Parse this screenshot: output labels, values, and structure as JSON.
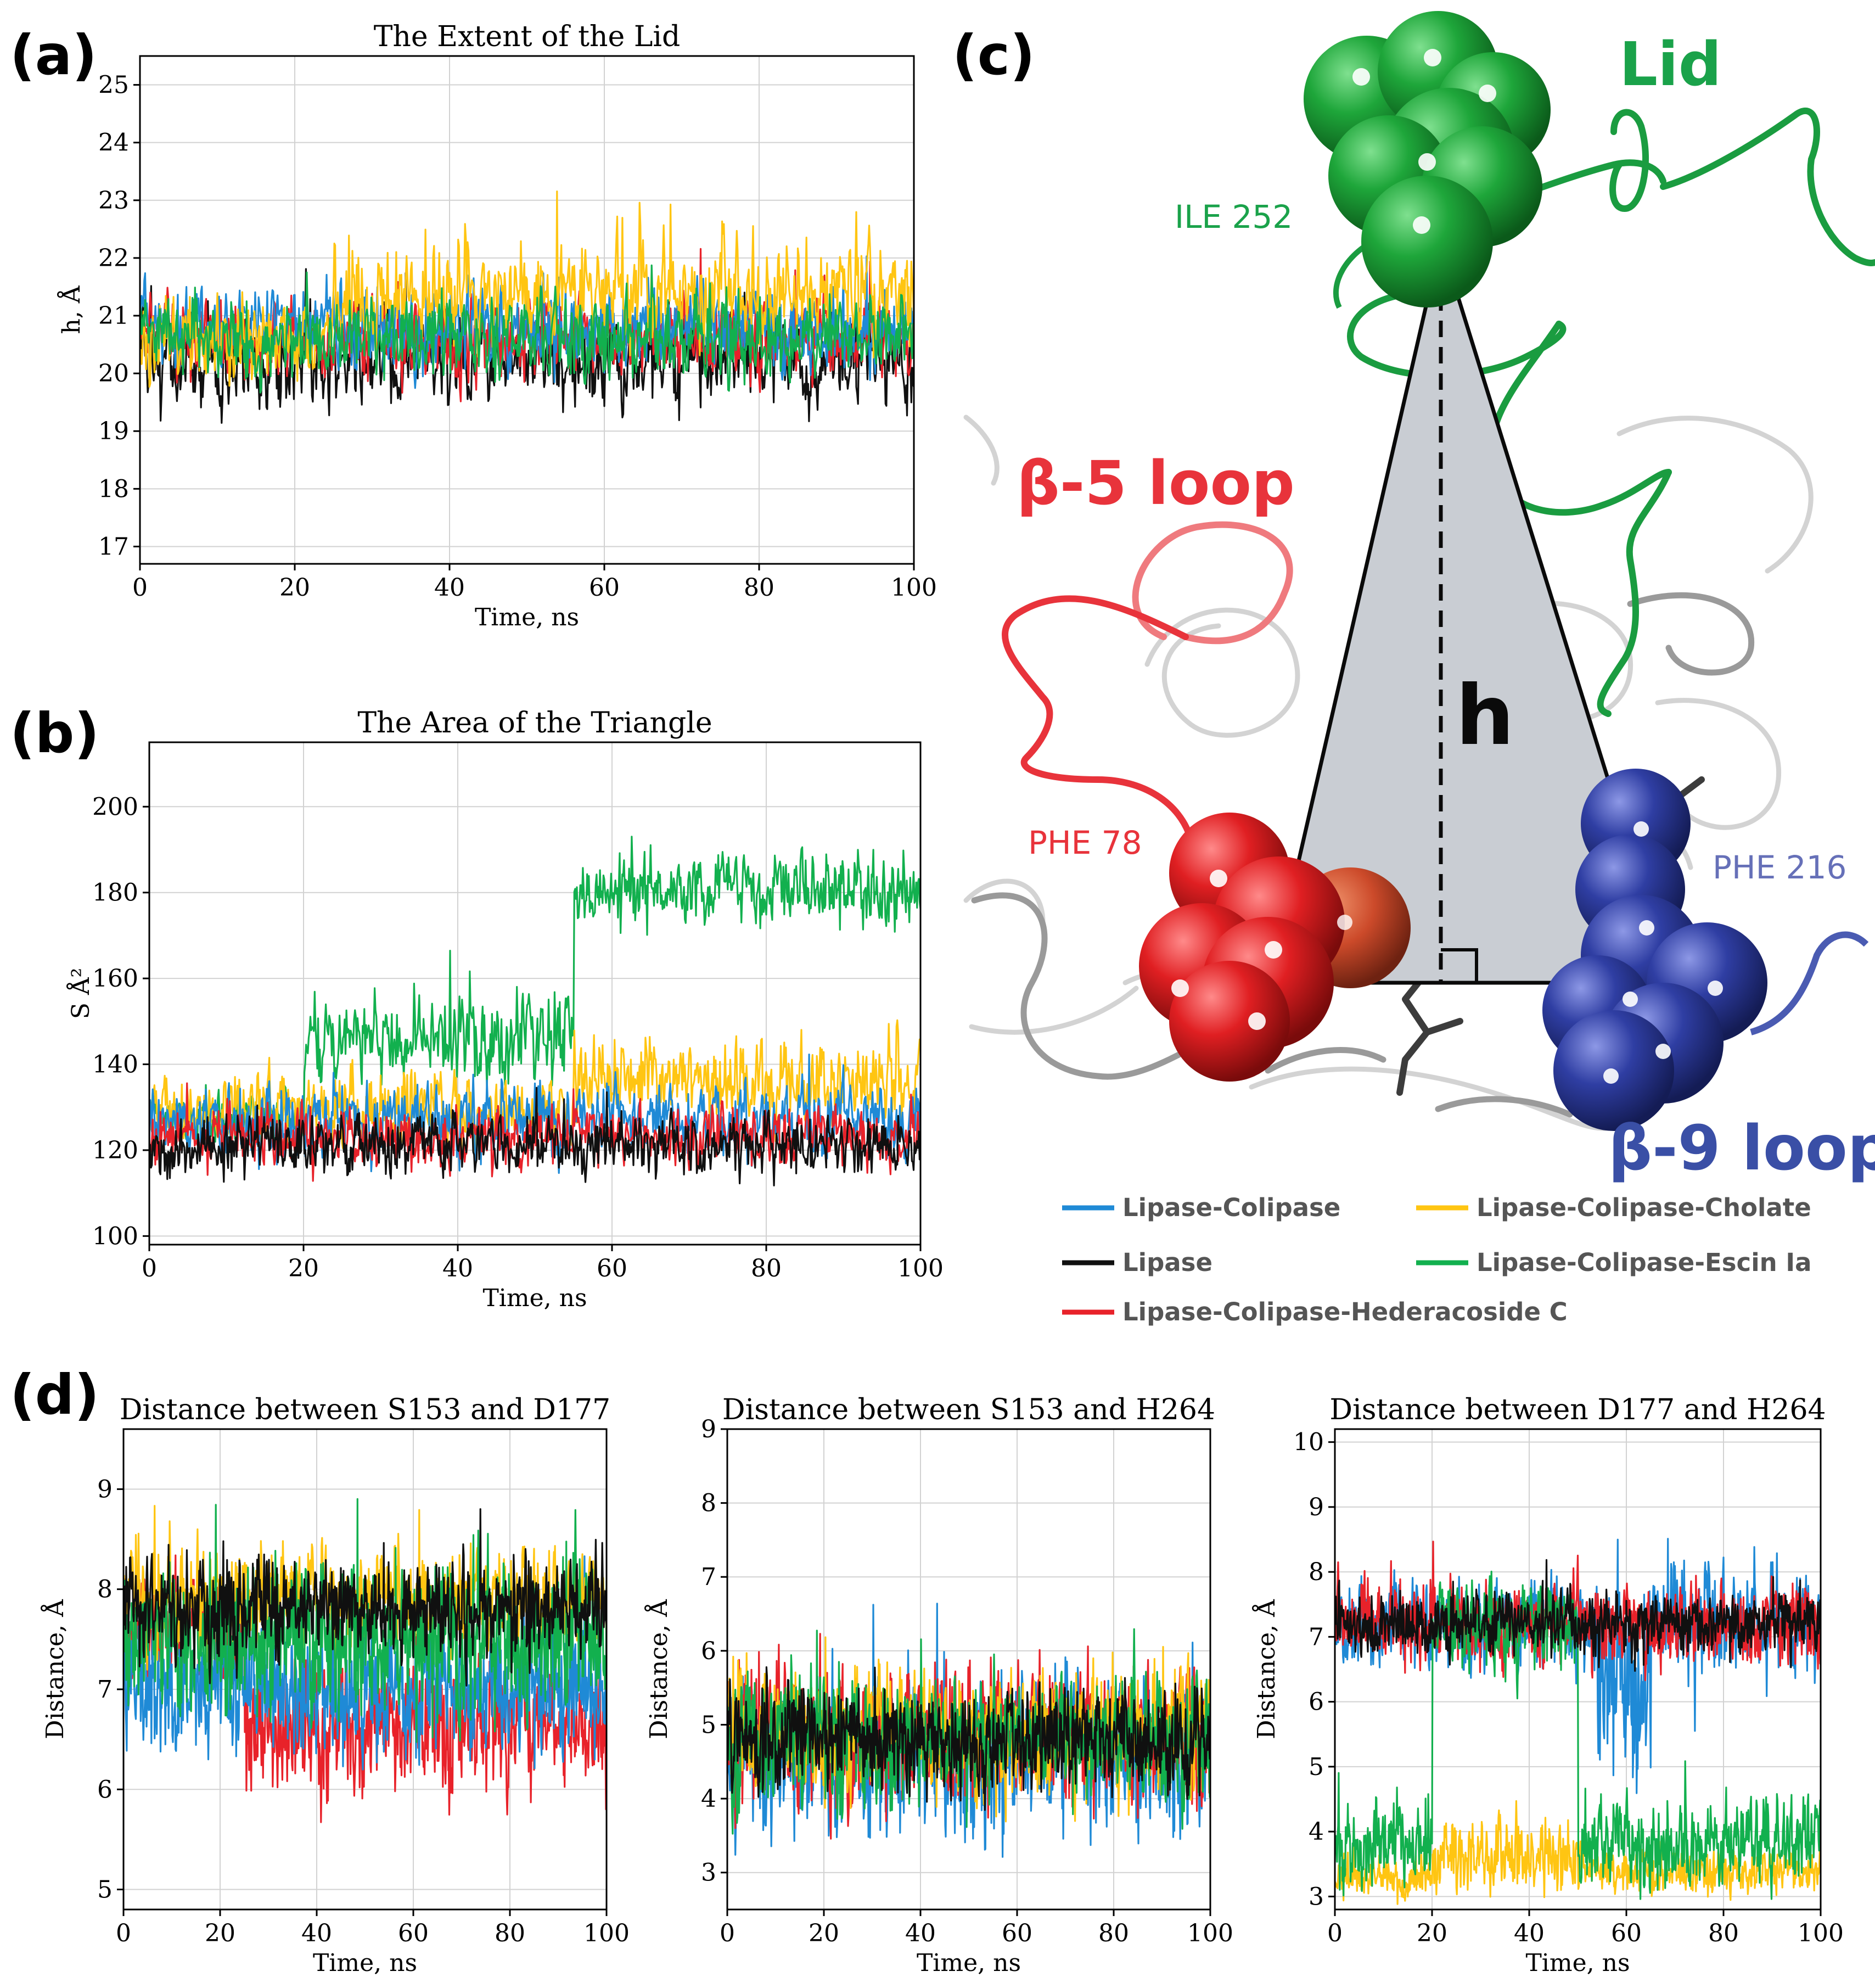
{
  "panel_labels": {
    "a": "(a)",
    "b": "(b)",
    "c": "(c)",
    "d": "(d)"
  },
  "colors": {
    "Lipase-Colipase": "#1f8ad6",
    "Lipase-Colipase-Cholate": "#ffc512",
    "Lipase": "#101010",
    "Lipase-Colipase-Escin Ia": "#12b04e",
    "Lipase-Colipase-Hederacoside C": "#e8222a"
  },
  "legend": [
    {
      "name": "Lipase-Colipase",
      "color": "#1f8ad6"
    },
    {
      "name": "Lipase-Colipase-Cholate",
      "color": "#ffc512"
    },
    {
      "name": "Lipase",
      "color": "#101010"
    },
    {
      "name": "Lipase-Colipase-Escin Ia",
      "color": "#12b04e"
    },
    {
      "name": "Lipase-Colipase-Hederacoside C",
      "color": "#e8222a"
    }
  ],
  "structure": {
    "labels": {
      "lid": "Lid",
      "ile": "ILE  252",
      "beta5": "β-5 loop",
      "beta9": "β-9 loop",
      "phe78": "PHE  78",
      "phe216": "PHE  216",
      "h": "h"
    },
    "colors": {
      "lid": "#1aa24a",
      "beta5": "#e8333b",
      "beta9": "#3a4fa6",
      "phe216": "#6670b8",
      "triangle": "#c9cdd3"
    }
  },
  "chart_data": [
    {
      "id": "a",
      "type": "line",
      "title": "The Extent of the Lid",
      "xlabel": "Time, ns",
      "ylabel": "h, Å",
      "xlim": [
        0,
        100
      ],
      "ylim": [
        16.7,
        25.5
      ],
      "xticks": [
        0,
        20,
        40,
        60,
        80,
        100
      ],
      "yticks": [
        17,
        18,
        19,
        20,
        21,
        22,
        23,
        24,
        25
      ],
      "grid": true,
      "series": [
        {
          "name": "Lipase",
          "color": "#101010",
          "segments": [
            [
              0,
              100,
              20.2,
              0.55
            ]
          ]
        },
        {
          "name": "Lipase-Colipase-Hederacoside C",
          "color": "#e8222a",
          "segments": [
            [
              0,
              100,
              20.6,
              0.5
            ]
          ]
        },
        {
          "name": "Lipase-Colipase",
          "color": "#1f8ad6",
          "segments": [
            [
              0,
              100,
              20.8,
              0.5
            ]
          ]
        },
        {
          "name": "Lipase-Colipase-Cholate",
          "color": "#ffc512",
          "segments": [
            [
              0,
              25,
              20.6,
              0.5
            ],
            [
              25,
              100,
              21.4,
              0.65
            ]
          ]
        },
        {
          "name": "Lipase-Colipase-Escin Ia",
          "color": "#12b04e",
          "segments": [
            [
              0,
              100,
              20.6,
              0.5
            ]
          ]
        }
      ]
    },
    {
      "id": "b",
      "type": "line",
      "title": "The Area of the Triangle",
      "xlabel": "Time, ns",
      "ylabel": "S Å²",
      "xlim": [
        0,
        100
      ],
      "ylim": [
        98,
        215
      ],
      "xticks": [
        0,
        20,
        40,
        60,
        80,
        100
      ],
      "yticks": [
        100,
        120,
        140,
        160,
        180,
        200
      ],
      "grid": true,
      "series": [
        {
          "name": "Lipase-Colipase-Escin Ia",
          "color": "#12b04e",
          "segments": [
            [
              0,
              20,
              128,
              4.5
            ],
            [
              20,
              38,
              146,
              6
            ],
            [
              38,
              55,
              148,
              8
            ],
            [
              55,
              100,
              180,
              6
            ]
          ]
        },
        {
          "name": "Lipase-Colipase-Cholate",
          "color": "#ffc512",
          "segments": [
            [
              0,
              55,
              130,
              6
            ],
            [
              55,
              100,
              137,
              7
            ]
          ]
        },
        {
          "name": "Lipase-Colipase",
          "color": "#1f8ad6",
          "segments": [
            [
              0,
              100,
              127,
              6
            ]
          ]
        },
        {
          "name": "Lipase-Colipase-Hederacoside C",
          "color": "#e8222a",
          "segments": [
            [
              0,
              100,
              123,
              5
            ]
          ]
        },
        {
          "name": "Lipase",
          "color": "#101010",
          "segments": [
            [
              0,
              100,
              121,
              5
            ]
          ]
        }
      ]
    },
    {
      "id": "d1",
      "type": "line",
      "title": "Distance between S153 and D177",
      "xlabel": "Time, ns",
      "ylabel": "Distance, Å",
      "xlim": [
        0,
        100
      ],
      "ylim": [
        4.8,
        9.6
      ],
      "xticks": [
        0,
        20,
        40,
        60,
        80,
        100
      ],
      "yticks": [
        5,
        6,
        7,
        8,
        9
      ],
      "grid": true,
      "series": [
        {
          "name": "Lipase-Colipase-Hederacoside C",
          "color": "#e8222a",
          "segments": [
            [
              0,
              25,
              7.6,
              0.35
            ],
            [
              25,
              100,
              6.6,
              0.45
            ]
          ]
        },
        {
          "name": "Lipase-Colipase",
          "color": "#1f8ad6",
          "segments": [
            [
              0,
              100,
              7.0,
              0.45
            ]
          ]
        },
        {
          "name": "Lipase-Colipase-Cholate",
          "color": "#ffc512",
          "segments": [
            [
              0,
              100,
              7.9,
              0.35
            ]
          ]
        },
        {
          "name": "Lipase-Colipase-Escin Ia",
          "color": "#12b04e",
          "segments": [
            [
              0,
              100,
              7.5,
              0.55
            ]
          ]
        },
        {
          "name": "Lipase",
          "color": "#101010",
          "segments": [
            [
              0,
              100,
              7.8,
              0.35
            ]
          ]
        }
      ]
    },
    {
      "id": "d2",
      "type": "line",
      "title": "Distance between S153 and H264",
      "xlabel": "Time, ns",
      "ylabel": "Distance, Å",
      "xlim": [
        0,
        100
      ],
      "ylim": [
        2.5,
        9
      ],
      "xticks": [
        0,
        20,
        40,
        60,
        80,
        100
      ],
      "yticks": [
        3,
        4,
        5,
        6,
        7,
        8,
        9
      ],
      "grid": true,
      "series": [
        {
          "name": "Lipase-Colipase",
          "color": "#1f8ad6",
          "segments": [
            [
              0,
              100,
              4.6,
              0.75
            ]
          ]
        },
        {
          "name": "Lipase-Colipase-Hederacoside C",
          "color": "#e8222a",
          "segments": [
            [
              0,
              100,
              4.9,
              0.65
            ]
          ]
        },
        {
          "name": "Lipase-Colipase-Cholate",
          "color": "#ffc512",
          "segments": [
            [
              0,
              100,
              4.9,
              0.6
            ]
          ]
        },
        {
          "name": "Lipase-Colipase-Escin Ia",
          "color": "#12b04e",
          "segments": [
            [
              0,
              100,
              4.8,
              0.6
            ]
          ]
        },
        {
          "name": "Lipase",
          "color": "#101010",
          "segments": [
            [
              0,
              100,
              4.8,
              0.5
            ]
          ]
        }
      ]
    },
    {
      "id": "d3",
      "type": "line",
      "title": "Distance between D177 and H264",
      "xlabel": "Time, ns",
      "ylabel": "Distance, Å",
      "xlim": [
        0,
        100
      ],
      "ylim": [
        2.8,
        10.2
      ],
      "xticks": [
        0,
        20,
        40,
        60,
        80,
        100
      ],
      "yticks": [
        3,
        4,
        5,
        6,
        7,
        8,
        9,
        10
      ],
      "grid": true,
      "series": [
        {
          "name": "Lipase-Colipase",
          "color": "#1f8ad6",
          "segments": [
            [
              0,
              54,
              7.2,
              0.5
            ],
            [
              54,
              65,
              6.2,
              1.3
            ],
            [
              65,
              100,
              7.2,
              0.55
            ]
          ]
        },
        {
          "name": "Lipase-Colipase-Hederacoside C",
          "color": "#e8222a",
          "segments": [
            [
              0,
              100,
              7.2,
              0.45
            ]
          ]
        },
        {
          "name": "Lipase-Colipase-Cholate",
          "color": "#ffc512",
          "segments": [
            [
              0,
              20,
              3.3,
              0.25
            ],
            [
              20,
              50,
              3.6,
              0.4
            ],
            [
              50,
              100,
              3.4,
              0.25
            ]
          ]
        },
        {
          "name": "Lipase-Colipase-Escin Ia",
          "color": "#12b04e",
          "segments": [
            [
              0,
              20,
              3.8,
              0.45
            ],
            [
              20,
              50,
              7.2,
              0.5
            ],
            [
              50,
              100,
              3.8,
              0.45
            ]
          ]
        },
        {
          "name": "Lipase",
          "color": "#101010",
          "segments": [
            [
              0,
              100,
              7.2,
              0.35
            ]
          ]
        }
      ]
    }
  ]
}
